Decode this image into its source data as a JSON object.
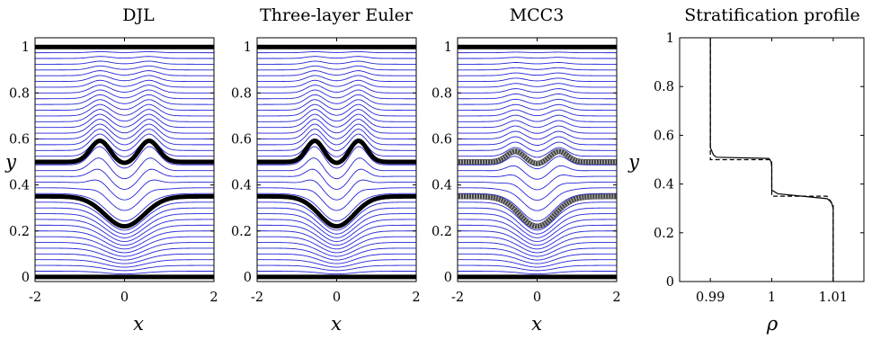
{
  "chart_data": [
    {
      "type": "line",
      "title": "DJL",
      "xlabel": "x",
      "ylabel": "y",
      "xlim": [
        -2,
        2
      ],
      "ylim": [
        -0.02,
        1.04
      ],
      "xticks": [
        "-2",
        "0",
        "2"
      ],
      "yticks": [
        "0",
        "0.2",
        "0.4",
        "0.6",
        "0.8",
        "1"
      ],
      "streamline_color": "#2525d8",
      "interface_color": "#000000",
      "streamline_levels": [
        0.025,
        0.05,
        0.075,
        0.1,
        0.125,
        0.15,
        0.175,
        0.2,
        0.225,
        0.25,
        0.275,
        0.3,
        0.325,
        0.3625,
        0.3875,
        0.4125,
        0.4375,
        0.4625,
        0.4875,
        0.525,
        0.55,
        0.575,
        0.6,
        0.625,
        0.65,
        0.675,
        0.7,
        0.725,
        0.75,
        0.775,
        0.8,
        0.825,
        0.85,
        0.875,
        0.9,
        0.925,
        0.95,
        0.975
      ],
      "interfaces": [
        {
          "level": 0.0,
          "style": "boundary"
        },
        {
          "level": 0.35,
          "style": "solid",
          "trough_min": 0.22
        },
        {
          "level": 0.5,
          "style": "solid",
          "crest_max": 0.58
        },
        {
          "level": 1.0,
          "style": "boundary"
        }
      ]
    },
    {
      "type": "line",
      "title": "Three-layer Euler",
      "xlabel": "x",
      "ylabel": "",
      "xlim": [
        -2,
        2
      ],
      "ylim": [
        -0.02,
        1.04
      ],
      "xticks": [
        "-2",
        "0",
        "2"
      ],
      "yticks": [
        "0",
        "0.2",
        "0.4",
        "0.6",
        "0.8",
        "1"
      ],
      "streamline_color": "#2525d8",
      "interface_color": "#000000",
      "streamline_levels": [
        0.025,
        0.05,
        0.075,
        0.1,
        0.125,
        0.15,
        0.175,
        0.2,
        0.225,
        0.25,
        0.275,
        0.3,
        0.325,
        0.3625,
        0.3875,
        0.4125,
        0.4375,
        0.4625,
        0.4875,
        0.525,
        0.55,
        0.575,
        0.6,
        0.625,
        0.65,
        0.675,
        0.7,
        0.725,
        0.75,
        0.775,
        0.8,
        0.825,
        0.85,
        0.875,
        0.9,
        0.925,
        0.95,
        0.975
      ],
      "interfaces": [
        {
          "level": 0.0,
          "style": "boundary"
        },
        {
          "level": 0.35,
          "style": "solid",
          "trough_min": 0.22
        },
        {
          "level": 0.5,
          "style": "solid",
          "crest_max": 0.58
        },
        {
          "level": 1.0,
          "style": "boundary"
        }
      ]
    },
    {
      "type": "line",
      "title": "MCC3",
      "xlabel": "x",
      "ylabel": "",
      "xlim": [
        -2,
        2
      ],
      "ylim": [
        -0.02,
        1.04
      ],
      "xticks": [
        "-2",
        "0",
        "2"
      ],
      "yticks": [
        "0",
        "0.2",
        "0.4",
        "0.6",
        "0.8",
        "1"
      ],
      "streamline_color": "#2525d8",
      "interface_color": "#000000",
      "streamline_levels": [
        0.025,
        0.05,
        0.075,
        0.1,
        0.125,
        0.15,
        0.175,
        0.2,
        0.225,
        0.25,
        0.275,
        0.3,
        0.325,
        0.3625,
        0.3875,
        0.4125,
        0.4375,
        0.4625,
        0.4875,
        0.525,
        0.55,
        0.575,
        0.6,
        0.625,
        0.65,
        0.675,
        0.7,
        0.725,
        0.75,
        0.775,
        0.8,
        0.825,
        0.85,
        0.875,
        0.9,
        0.925,
        0.95,
        0.975
      ],
      "interfaces": [
        {
          "level": 0.0,
          "style": "boundary"
        },
        {
          "level": 0.35,
          "style": "textured",
          "trough_min": 0.22
        },
        {
          "level": 0.5,
          "style": "textured",
          "crest_max": 0.54
        },
        {
          "level": 1.0,
          "style": "boundary"
        }
      ]
    },
    {
      "type": "line",
      "title": "Stratification profile",
      "xlabel": "ρ",
      "ylabel": "y",
      "xlim": [
        0.985,
        1.015
      ],
      "ylim": [
        0,
        1
      ],
      "xticks": [
        "0.99",
        "1",
        "1.01"
      ],
      "yticks": [
        "0",
        "0.2",
        "0.4",
        "0.6",
        "0.8",
        "1"
      ],
      "series": [
        {
          "style": "solid",
          "x": [
            1.01,
            1.01,
            1.0098,
            1.0095,
            1.009,
            1.001,
            1.0,
            1.0,
            0.9999,
            0.9997,
            0.9995,
            0.991,
            0.9905,
            0.99,
            0.99
          ],
          "y": [
            0.0,
            0.3,
            0.318,
            0.33,
            0.34,
            0.36,
            0.375,
            0.47,
            0.49,
            0.5,
            0.505,
            0.51,
            0.52,
            0.55,
            1.0
          ]
        },
        {
          "style": "dashed",
          "x": [
            1.01,
            1.01,
            1.009,
            1.0,
            1.0,
            0.9998,
            0.991,
            0.99,
            0.99
          ],
          "y": [
            0.0,
            0.315,
            0.35,
            0.35,
            0.49,
            0.5,
            0.5,
            0.5,
            1.0
          ]
        }
      ]
    }
  ]
}
